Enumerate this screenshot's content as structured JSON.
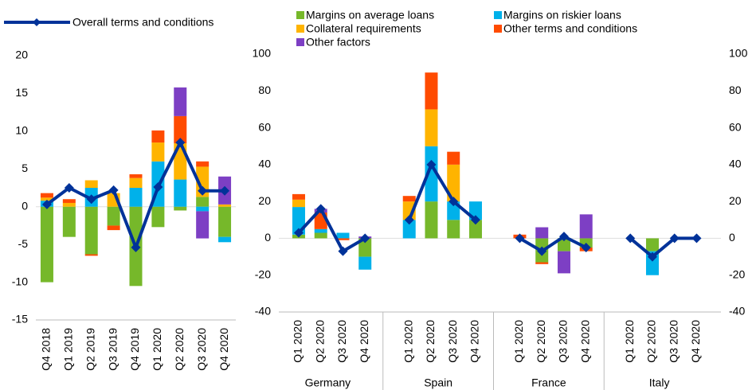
{
  "chart_data": [
    {
      "type": "stacked-bar-line",
      "categories": [
        "Q4 2018",
        "Q1 2019",
        "Q2 2019",
        "Q3 2019",
        "Q4 2019",
        "Q1 2020",
        "Q2 2020",
        "Q3 2020",
        "Q4 2020"
      ],
      "series": [
        {
          "color": "#76b82a",
          "values": [
            -10,
            -4,
            -6.3,
            -2.5,
            -10.5,
            -2.7,
            -0.5,
            1.3,
            -4
          ]
        },
        {
          "color": "#00b1ea",
          "values": [
            0.8,
            0,
            2.5,
            0,
            2.5,
            6,
            3.6,
            -0.6,
            -0.7
          ]
        },
        {
          "color": "#ffb400",
          "values": [
            0.4,
            0.5,
            1,
            1.8,
            1.3,
            2.5,
            4.8,
            4,
            0.3
          ]
        },
        {
          "color": "#ff4b00",
          "values": [
            0.6,
            0.5,
            -0.2,
            -0.6,
            0.5,
            1.6,
            3.6,
            0.7,
            0
          ]
        },
        {
          "color": "#7d3fc4",
          "values": [
            0,
            0,
            0,
            0,
            0,
            0,
            3.8,
            -3.6,
            3.7
          ]
        },
        {
          "type": "line",
          "name": "Overall terms and conditions",
          "color": "#003299",
          "values": [
            0.3,
            2.5,
            1,
            2.2,
            -5.4,
            2.6,
            8.5,
            2.1,
            2.1
          ]
        }
      ],
      "ylim": [
        -15,
        20
      ],
      "yticks": [
        -15,
        -10,
        -5,
        0,
        5,
        10,
        15,
        20
      ]
    },
    {
      "type": "stacked-bar-line",
      "groups": [
        "Germany",
        "Spain",
        "France",
        "Italy"
      ],
      "categories": [
        "Q1 2020",
        "Q2 2020",
        "Q3 2020",
        "Q4 2020",
        "Q1 2020",
        "Q2 2020",
        "Q3 2020",
        "Q4 2020",
        "Q1 2020",
        "Q2 2020",
        "Q3 2020",
        "Q4 2020",
        "Q1 2020",
        "Q2 2020",
        "Q3 2020",
        "Q4 2020"
      ],
      "series": [
        {
          "name": "Margins on average loans",
          "color": "#76b82a",
          "values": [
            2,
            3,
            0,
            -10,
            0,
            20,
            10,
            10,
            0,
            -13,
            -7,
            -5,
            0,
            -7,
            0,
            0
          ]
        },
        {
          "name": "Margins on riskier loans",
          "color": "#00b1ea",
          "values": [
            15,
            2,
            3,
            -7,
            10,
            30,
            10,
            10,
            0,
            0,
            0,
            0,
            0,
            -13,
            0,
            0
          ]
        },
        {
          "name": "Collateral requirements",
          "color": "#ffb400",
          "values": [
            4,
            0,
            0,
            0,
            10,
            20,
            20,
            0,
            0,
            0,
            0,
            0,
            0,
            0,
            0,
            0
          ]
        },
        {
          "name": "Other terms and conditions",
          "color": "#ff4b00",
          "values": [
            3,
            9,
            -1,
            0,
            3,
            20,
            7,
            0,
            2,
            -1,
            0,
            -2,
            0,
            0,
            0,
            0
          ]
        },
        {
          "name": "Other factors",
          "color": "#7d3fc4",
          "values": [
            0,
            2,
            0,
            1,
            0,
            0,
            0,
            0,
            0,
            6,
            -12,
            13,
            0,
            0,
            0,
            0
          ]
        },
        {
          "type": "line",
          "axis": "y2",
          "color": "#003299",
          "values": [
            3,
            16,
            -7,
            0,
            10,
            40,
            20,
            10,
            0,
            -7,
            1,
            -5,
            0,
            -10,
            0,
            0
          ]
        }
      ],
      "ylim": [
        -40,
        100
      ],
      "yticks": [
        -40,
        -20,
        0,
        20,
        40,
        60,
        80,
        100
      ],
      "y2lim": [
        -40,
        100
      ],
      "y2ticks": [
        -40,
        -20,
        0,
        20,
        40,
        60,
        80,
        100
      ]
    }
  ]
}
